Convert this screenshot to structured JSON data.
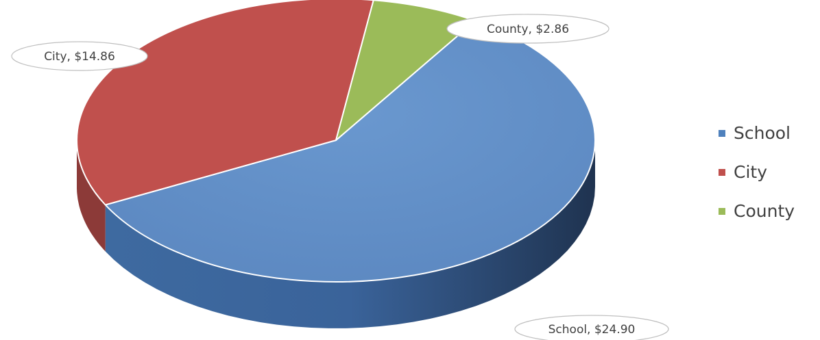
{
  "chart_data": {
    "type": "pie",
    "title": "",
    "categories": [
      "School",
      "City",
      "County"
    ],
    "values": [
      24.9,
      14.86,
      2.86
    ],
    "value_labels": [
      "$24.90",
      "$14.86",
      "$2.86"
    ],
    "data_labels": [
      "School, $24.90",
      "City, $14.86",
      "County, $2.86"
    ],
    "colors": [
      "#4f81bd",
      "#c0504d",
      "#9bbb59"
    ],
    "style": "3d",
    "legend_position": "right"
  },
  "legend": {
    "items": [
      {
        "label": "School",
        "color": "#4f81bd"
      },
      {
        "label": "City",
        "color": "#c0504d"
      },
      {
        "label": "County",
        "color": "#9bbb59"
      }
    ]
  }
}
